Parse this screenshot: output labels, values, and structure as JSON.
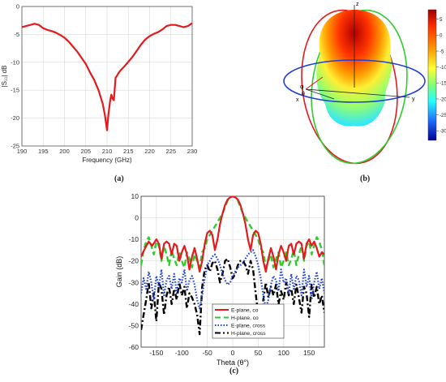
{
  "captions": {
    "a": "(a)",
    "b": "(b)",
    "c": "(c)"
  },
  "colors": {
    "red": "#e41a1c",
    "green": "#2ecc2e",
    "blue": "#1f3fd6",
    "black": "#000000",
    "grid": "#d9d9d9"
  },
  "chart_data": [
    {
      "id": "a",
      "type": "line",
      "xlabel": "Frequency (GHz)",
      "ylabel": "|S₁₁| dB",
      "xlim": [
        190,
        230
      ],
      "ylim": [
        -25,
        0
      ],
      "xticks": [
        190,
        195,
        200,
        205,
        210,
        215,
        220,
        225,
        230
      ],
      "yticks": [
        0,
        -5,
        -10,
        -15,
        -20,
        -25
      ],
      "grid": true,
      "series": [
        {
          "color": "#e41a1c",
          "x": [
            190,
            191,
            192,
            193,
            194,
            195,
            196,
            197,
            198,
            199,
            200,
            201,
            202,
            203,
            204,
            205,
            206,
            207,
            208,
            209,
            209.5,
            210,
            210.3,
            210.7,
            211,
            211.3,
            211.6,
            212,
            212.5,
            213,
            214,
            215,
            216,
            217,
            218,
            219,
            220,
            221,
            222,
            223,
            224,
            225,
            226,
            227,
            228,
            229,
            230
          ],
          "y": [
            -3.7,
            -3.5,
            -3.3,
            -3.1,
            -3.3,
            -3.9,
            -4.2,
            -4.4,
            -4.7,
            -5.1,
            -5.6,
            -6.3,
            -7.2,
            -8.1,
            -9.2,
            -10.3,
            -11.8,
            -13.2,
            -15.0,
            -17.5,
            -19.5,
            -22.2,
            -19.5,
            -17.0,
            -15.8,
            -16.5,
            -16.8,
            -12.8,
            -12.2,
            -11.6,
            -10.8,
            -9.9,
            -9.0,
            -7.9,
            -6.8,
            -5.9,
            -5.3,
            -4.9,
            -4.6,
            -4.1,
            -3.5,
            -3.3,
            -3.3,
            -3.5,
            -3.7,
            -3.5,
            -3.0
          ]
        }
      ]
    },
    {
      "id": "b",
      "type": "other",
      "axis_labels": {
        "z": "z",
        "x": "x",
        "y": "y",
        "phi": "φ",
        "theta": "θ"
      },
      "colorbar": {
        "ticks": [
          5,
          0,
          -5,
          -10,
          -15,
          -20,
          -25,
          -30
        ],
        "range": [
          -33,
          8
        ]
      }
    },
    {
      "id": "c",
      "type": "line",
      "xlabel": "Theta (θ°)",
      "ylabel": "Gain (dB)",
      "xlim": [
        -180,
        180
      ],
      "ylim": [
        -60,
        10
      ],
      "xticks": [
        -150,
        -100,
        -50,
        0,
        50,
        100,
        150
      ],
      "yticks": [
        10,
        0,
        -10,
        -20,
        -30,
        -40,
        -50,
        -60
      ],
      "grid": true,
      "legend": "bottom-center",
      "series": [
        {
          "name": "E-plane, co",
          "color": "#e41a1c",
          "dash": "solid",
          "x": [
            -180,
            -172,
            -165,
            -158,
            -150,
            -145,
            -140,
            -135,
            -130,
            -125,
            -120,
            -115,
            -110,
            -105,
            -100,
            -95,
            -90,
            -85,
            -80,
            -75,
            -70,
            -65,
            -60,
            -55,
            -50,
            -45,
            -40,
            -35,
            -30,
            -25,
            -20,
            -15,
            -10,
            -5,
            0,
            5,
            10,
            15,
            20,
            25,
            30,
            35,
            40,
            45,
            50,
            55,
            60,
            65,
            70,
            75,
            80,
            85,
            90,
            95,
            100,
            105,
            110,
            115,
            120,
            125,
            130,
            135,
            140,
            145,
            150,
            155,
            160,
            165,
            170,
            175,
            180
          ],
          "y": [
            -18,
            -14,
            -11,
            -13,
            -10,
            -12,
            -19,
            -12,
            -11,
            -12,
            -17,
            -12,
            -13,
            -20,
            -16,
            -13,
            -17,
            -24,
            -18,
            -14,
            -19,
            -25,
            -20,
            -12,
            -7,
            -6,
            -8,
            -15,
            -10,
            -3,
            2,
            6,
            8.5,
            9.5,
            10,
            9.5,
            8.5,
            6,
            2,
            -3,
            -10,
            -15,
            -8,
            -6,
            -7,
            -12,
            -20,
            -25,
            -19,
            -14,
            -18,
            -24,
            -17,
            -13,
            -16,
            -20,
            -13,
            -12,
            -17,
            -12,
            -11,
            -12,
            -19,
            -12,
            -10,
            -13,
            -11,
            -14,
            -18,
            -16,
            -17
          ]
        },
        {
          "name": "H-plane, co",
          "color": "#2ecc2e",
          "dash": "dash",
          "x": [
            -180,
            -175,
            -170,
            -165,
            -160,
            -155,
            -150,
            -145,
            -140,
            -135,
            -130,
            -125,
            -120,
            -115,
            -110,
            -105,
            -100,
            -95,
            -90,
            -85,
            -80,
            -75,
            -70,
            -65,
            -60,
            -55,
            -50,
            -45,
            -40,
            -35,
            -30,
            -25,
            -20,
            -15,
            -10,
            -5,
            0,
            5,
            10,
            15,
            20,
            25,
            30,
            35,
            40,
            45,
            50,
            55,
            60,
            65,
            70,
            75,
            80,
            85,
            90,
            95,
            100,
            105,
            110,
            115,
            120,
            125,
            130,
            135,
            140,
            145,
            150,
            155,
            160,
            165,
            170,
            175,
            180
          ],
          "y": [
            -22,
            -15,
            -11,
            -9,
            -13,
            -17,
            -11,
            -13,
            -20,
            -13,
            -17,
            -22,
            -15,
            -19,
            -22,
            -16,
            -20,
            -23,
            -16,
            -19,
            -23,
            -17,
            -20,
            -23,
            -16,
            -14,
            -10,
            -8,
            -6,
            -4,
            -2,
            0,
            2,
            5,
            8,
            9.5,
            10,
            9.5,
            8,
            5,
            2,
            0,
            -2,
            -4,
            -6,
            -8,
            -10,
            -14,
            -16,
            -23,
            -20,
            -17,
            -23,
            -19,
            -16,
            -23,
            -20,
            -16,
            -22,
            -19,
            -15,
            -22,
            -17,
            -13,
            -20,
            -13,
            -11,
            -17,
            -13,
            -9,
            -11,
            -15,
            -22
          ]
        },
        {
          "name": "E-plane, cross",
          "color": "#1f3fd6",
          "dash": "dot",
          "x": [
            -180,
            -175,
            -170,
            -165,
            -160,
            -155,
            -150,
            -145,
            -140,
            -135,
            -130,
            -125,
            -120,
            -115,
            -110,
            -105,
            -100,
            -95,
            -90,
            -85,
            -80,
            -75,
            -70,
            -65,
            -60,
            -55,
            -50,
            -45,
            -40,
            -35,
            -30,
            -25,
            -20,
            -15,
            -10,
            -5,
            0,
            5,
            10,
            15,
            20,
            25,
            30,
            35,
            40,
            45,
            50,
            55,
            60,
            65,
            70,
            75,
            80,
            85,
            90,
            95,
            100,
            105,
            110,
            115,
            120,
            125,
            130,
            135,
            140,
            145,
            150,
            155,
            160,
            165,
            170,
            175,
            180
          ],
          "y": [
            -35,
            -28,
            -33,
            -25,
            -30,
            -38,
            -27,
            -32,
            -24,
            -36,
            -29,
            -27,
            -33,
            -26,
            -35,
            -28,
            -30,
            -24,
            -34,
            -29,
            -27,
            -31,
            -38,
            -42,
            -36,
            -28,
            -22,
            -20,
            -18,
            -17,
            -19,
            -22,
            -26,
            -29,
            -31,
            -30,
            -27,
            -25,
            -23,
            -22,
            -21,
            -19,
            -17,
            -16,
            -15,
            -18,
            -22,
            -28,
            -36,
            -42,
            -38,
            -31,
            -27,
            -29,
            -34,
            -24,
            -30,
            -28,
            -35,
            -26,
            -33,
            -27,
            -29,
            -36,
            -24,
            -32,
            -27,
            -38,
            -30,
            -25,
            -33,
            -28,
            -35
          ]
        },
        {
          "name": "H-plane, cross",
          "color": "#000000",
          "dash": "dashdot",
          "x": [
            -180,
            -175,
            -170,
            -165,
            -160,
            -155,
            -150,
            -145,
            -140,
            -135,
            -130,
            -125,
            -120,
            -115,
            -110,
            -105,
            -100,
            -95,
            -90,
            -85,
            -80,
            -75,
            -70,
            -65,
            -60,
            -55,
            -50,
            -45,
            -40,
            -35,
            -30,
            -25,
            -20,
            -15,
            -10,
            -5,
            0,
            5,
            10,
            15,
            20,
            25,
            30,
            35,
            40,
            45,
            50,
            55,
            60,
            65,
            70,
            75,
            80,
            85,
            90,
            95,
            100,
            105,
            110,
            115,
            120,
            125,
            130,
            135,
            140,
            145,
            150,
            155,
            160,
            165,
            170,
            175,
            180
          ],
          "y": [
            -52,
            -45,
            -38,
            -30,
            -42,
            -35,
            -48,
            -30,
            -33,
            -45,
            -36,
            -32,
            -40,
            -33,
            -38,
            -30,
            -36,
            -32,
            -42,
            -35,
            -37,
            -40,
            -45,
            -54,
            -32,
            -24,
            -22,
            -25,
            -21,
            -20,
            -24,
            -30,
            -26,
            -20,
            -19,
            -23,
            -28,
            -26,
            -22,
            -20,
            -20,
            -22,
            -26,
            -20,
            -24,
            -35,
            -45,
            -54,
            -38,
            -30,
            -37,
            -32,
            -36,
            -31,
            -40,
            -34,
            -38,
            -30,
            -36,
            -33,
            -40,
            -31,
            -37,
            -44,
            -32,
            -35,
            -46,
            -31,
            -37,
            -32,
            -40,
            -36,
            -44
          ]
        }
      ]
    }
  ]
}
